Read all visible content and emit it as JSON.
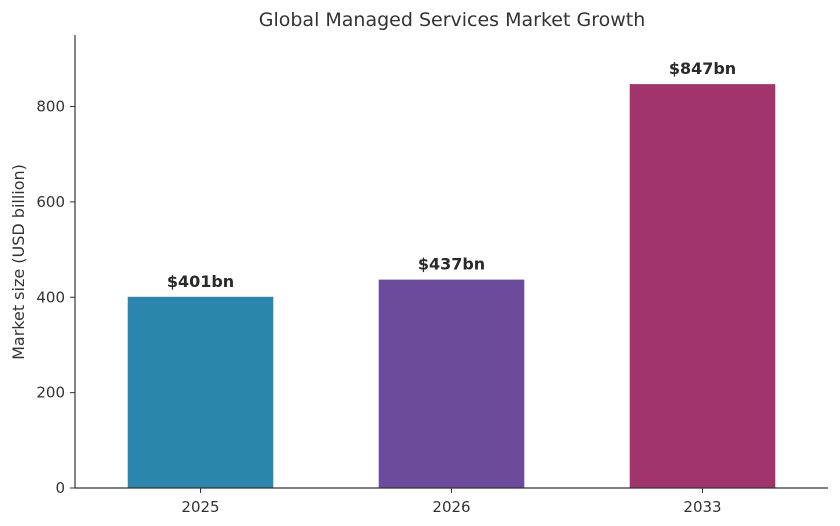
{
  "chart_data": {
    "type": "bar",
    "title": "Global Managed Services Market Growth",
    "xlabel": "",
    "ylabel": "Market size (USD billion)",
    "categories": [
      "2025",
      "2026",
      "2033"
    ],
    "values": [
      401,
      437,
      847
    ],
    "data_labels": [
      "$401bn",
      "$437bn",
      "$847bn"
    ],
    "colors": [
      "#2a86ad",
      "#6c4a9c",
      "#a1356b"
    ],
    "ylim": [
      0,
      950
    ],
    "yticks": [
      0,
      200,
      400,
      600,
      800
    ],
    "grid": false,
    "legend": "none"
  }
}
